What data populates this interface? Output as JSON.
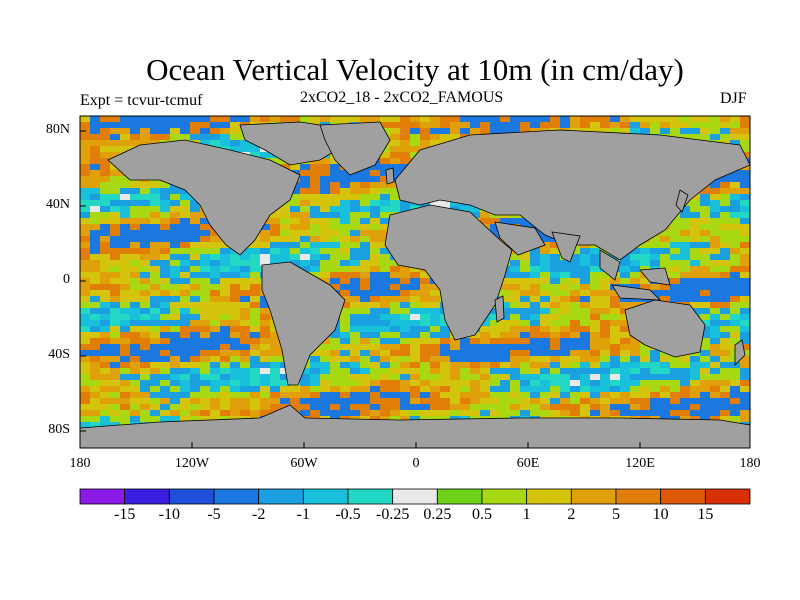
{
  "figure": {
    "title": "Ocean Vertical Velocity at 10m (in cm/day)",
    "experiment": "Expt = tcvur-tcmuf",
    "subtitle": "2xCO2_18 - 2xCO2_FAMOUS",
    "season": "DJF"
  },
  "axes": {
    "lat_ticks": [
      "80N",
      "40N",
      "0",
      "40S",
      "80S"
    ],
    "lon_ticks": [
      "180",
      "120W",
      "60W",
      "0",
      "60E",
      "120E",
      "180"
    ]
  },
  "colorbar": {
    "labels": [
      "-15",
      "-10",
      "-5",
      "-2",
      "-1",
      "-0.5",
      "-0.25",
      "0.25",
      "0.5",
      "1",
      "2",
      "5",
      "10",
      "15"
    ],
    "colors": [
      "#8a1be6",
      "#3a1fe0",
      "#1f4fd8",
      "#1a78e0",
      "#1aa0e0",
      "#18c0dc",
      "#22d8c4",
      "#e8e8e8",
      "#6ed21a",
      "#a8d812",
      "#d4c40c",
      "#e0a00a",
      "#e07e08",
      "#e05a06",
      "#d83004"
    ]
  },
  "map": {
    "land_color": "#a0a0a0",
    "ocean_field_colors": [
      "#e8e8e8",
      "#22d8c4",
      "#18c0dc",
      "#1aa0e0",
      "#a8d812",
      "#d4c40c",
      "#e0a00a",
      "#e07e08",
      "#1a78e0"
    ]
  }
}
